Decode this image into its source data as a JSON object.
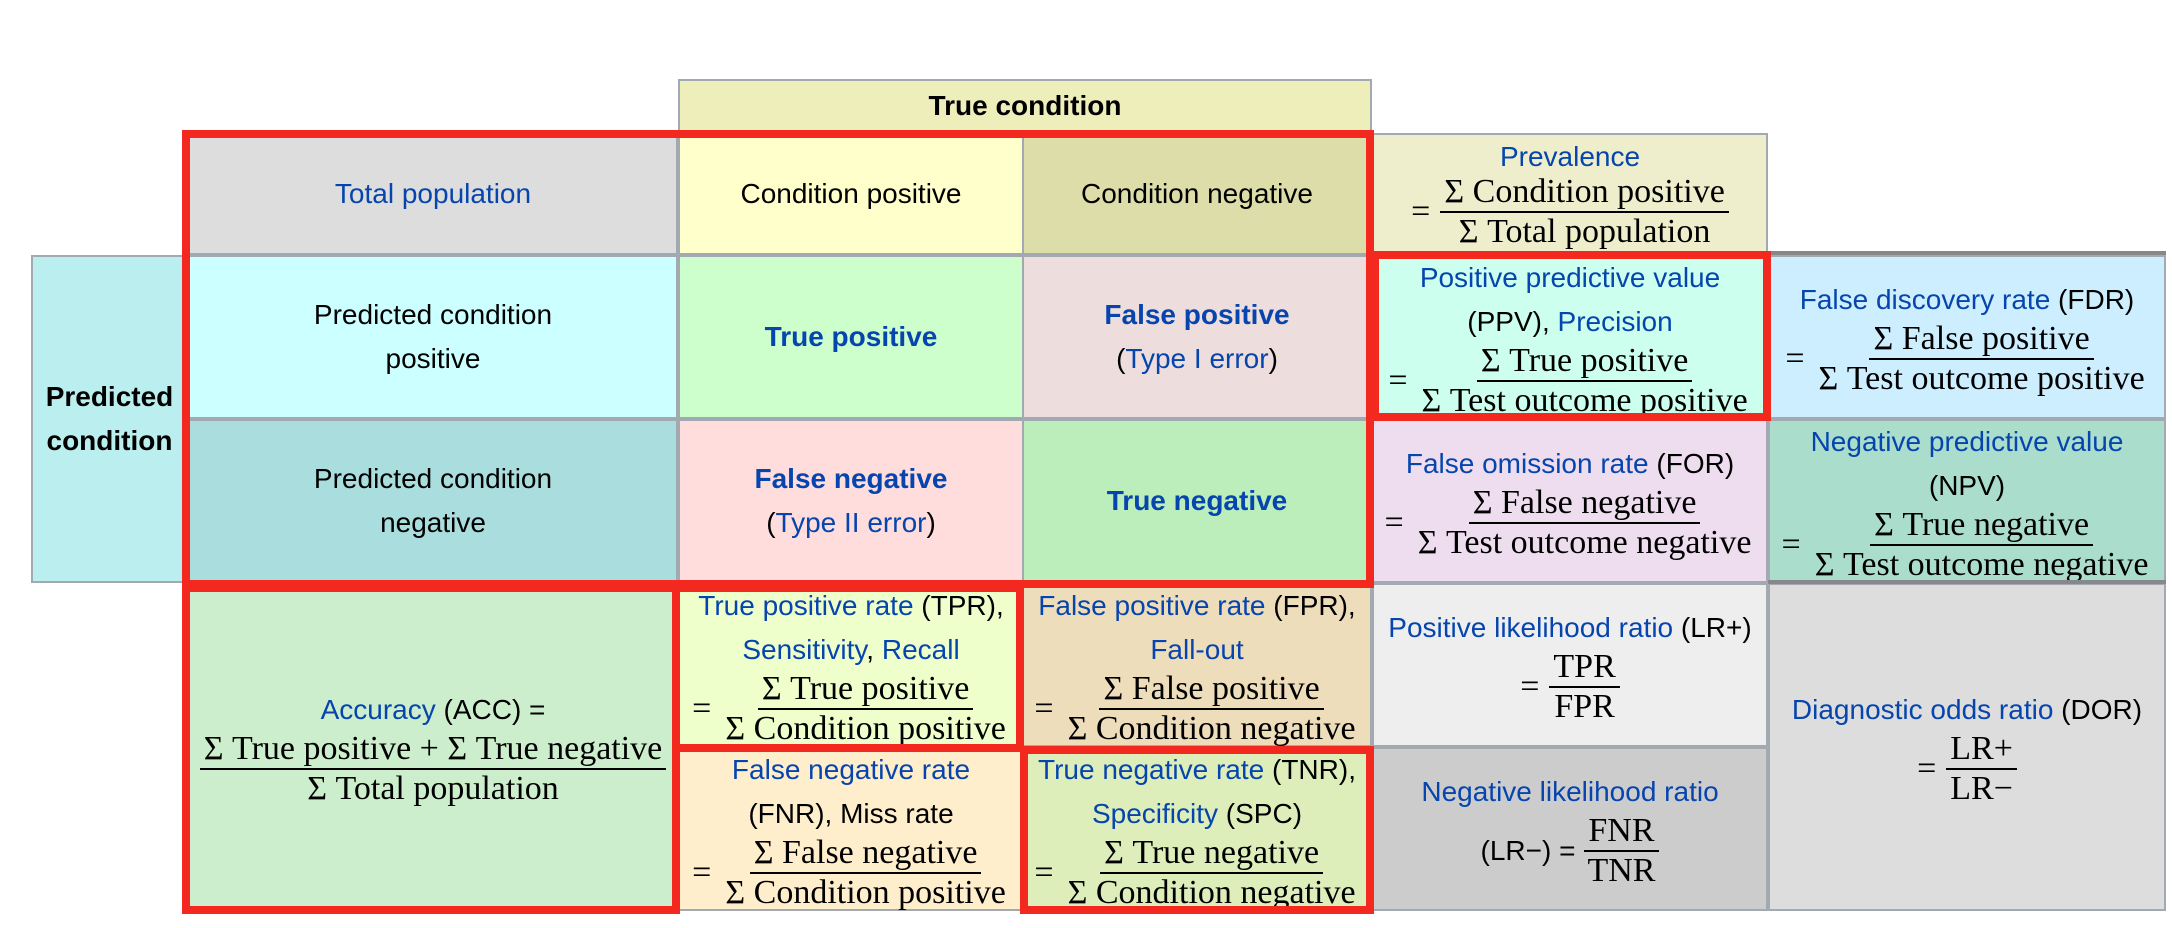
{
  "header": {
    "true_condition": "True condition"
  },
  "row_header": {
    "predicted_condition": "Predicted\ncondition"
  },
  "total_population": "Total population",
  "condition_positive": "Condition positive",
  "condition_negative": "Condition negative",
  "prevalence": {
    "title": "Prevalence",
    "eq": "=",
    "num": "Σ Condition positive",
    "den": "Σ Total population"
  },
  "pred_pos": "Predicted condition\npositive",
  "pred_neg": "Predicted condition\nnegative",
  "true_positive": "True positive",
  "false_positive": {
    "title": "False positive",
    "paren_open": "(",
    "link": "Type I error",
    "paren_close": ")"
  },
  "false_negative": {
    "title": "False negative",
    "paren_open": "(",
    "link": "Type II error",
    "paren_close": ")"
  },
  "true_negative": "True negative",
  "ppv": {
    "link1": "Positive predictive value",
    "abbr": "(PPV), ",
    "link2": "Precision",
    "eq": "=",
    "num": "Σ True positive",
    "den": "Σ Test outcome positive"
  },
  "fdr": {
    "link": "False discovery rate",
    "abbr": " (FDR)",
    "eq": "=",
    "num": "Σ False positive",
    "den": "Σ Test outcome positive"
  },
  "for_rate": {
    "link": "False omission rate",
    "abbr": " (FOR)",
    "eq": "=",
    "num": "Σ False negative",
    "den": "Σ Test outcome negative"
  },
  "npv": {
    "link": "Negative predictive value",
    "abbr": "(NPV)",
    "eq": "=",
    "num": "Σ True negative",
    "den": "Σ Test outcome negative"
  },
  "accuracy": {
    "link": "Accuracy",
    "abbr": " (ACC) =",
    "num": "Σ True positive + Σ True negative",
    "den": "Σ Total population"
  },
  "tpr": {
    "link1": "True positive rate",
    "abbr": " (TPR),",
    "link2": "Sensitivity",
    "sep": ", ",
    "link3": "Recall",
    "eq": "=",
    "num": "Σ True positive",
    "den": "Σ Condition positive"
  },
  "fpr": {
    "link1": "False positive rate",
    "abbr": " (FPR),",
    "link2": "Fall-out",
    "eq": "=",
    "num": "Σ False positive",
    "den": "Σ Condition negative"
  },
  "fnr": {
    "link": "False negative rate",
    "abbr": "(FNR), Miss rate",
    "eq": "=",
    "num": "Σ False negative",
    "den": "Σ Condition positive"
  },
  "tnr": {
    "link1": "True negative rate",
    "abbr": " (TNR),",
    "link2": "Specificity",
    "abbr2": " (SPC)",
    "eq": "=",
    "num": "Σ True negative",
    "den": "Σ Condition negative"
  },
  "lr_pos": {
    "link": "Positive likelihood ratio",
    "abbr": " (LR+)",
    "eq": "=",
    "num": "TPR",
    "den": "FPR"
  },
  "lr_neg": {
    "link": "Negative likelihood ratio",
    "abbr": "(LR−) =",
    "num": "FNR",
    "den": "TNR"
  },
  "dor": {
    "link": "Diagnostic odds ratio",
    "abbr": " (DOR)",
    "eq": "=",
    "num": "LR+",
    "den": "LR−"
  },
  "colors": {
    "header": "#eeeebb",
    "total": "#dddddd",
    "cond_pos": "#ffffcc",
    "cond_neg": "#ddddaa",
    "prevalence": "#eeeecc",
    "pred_cond": "#bbeeee",
    "pred_pos": "#ccffff",
    "pred_neg": "#aadddd",
    "tp": "#ccffcc",
    "fp": "#eedddd",
    "fn": "#ffdddd",
    "tn": "#bbeebb",
    "ppv": "#ccffee",
    "fdr": "#cceeff",
    "for": "#eeddee",
    "npv": "#aaddcc",
    "acc": "#cceecc",
    "tpr": "#eeffcc",
    "fpr": "#eeddbb",
    "fnr": "#ffeecc",
    "tnr": "#ddeebb",
    "lrp": "#eeeeee",
    "lrn": "#cccccc",
    "dor": "#dddddd",
    "highlight": "#f3281f",
    "link": "#0645ad"
  }
}
